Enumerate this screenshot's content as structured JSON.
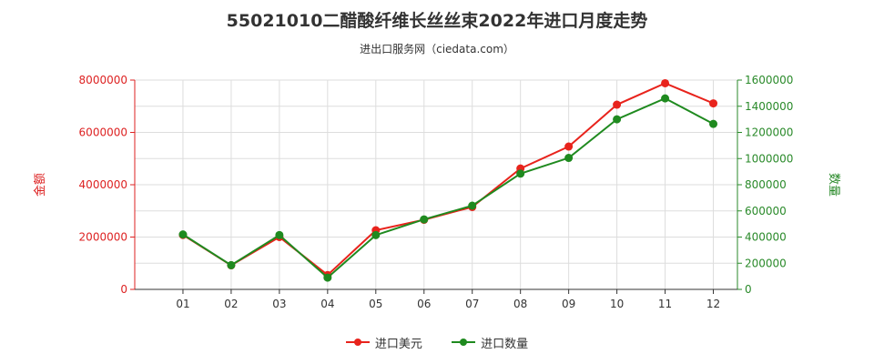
{
  "chart_data": {
    "type": "line",
    "title": "55021010二醋酸纤维长丝丝束2022年进口月度走势",
    "subtitle": "进出口服务网（ciedata.com）",
    "categories": [
      "01",
      "02",
      "03",
      "04",
      "05",
      "06",
      "07",
      "08",
      "09",
      "10",
      "11",
      "12"
    ],
    "y_left": {
      "label": "金额",
      "ylim": [
        0,
        8000000
      ],
      "ticks": [
        0,
        2000000,
        4000000,
        6000000,
        8000000
      ],
      "color": "#dd2222"
    },
    "y_right": {
      "label": "数量",
      "ylim": [
        0,
        1600000
      ],
      "ticks": [
        0,
        200000,
        400000,
        600000,
        800000,
        1000000,
        1200000,
        1400000,
        1600000
      ],
      "color": "#2a8a2a"
    },
    "series": [
      {
        "name": "进口美元",
        "axis": "left",
        "color": "#e8231c",
        "values": [
          2080000,
          920000,
          2000000,
          550000,
          2260000,
          2660000,
          3150000,
          4620000,
          5460000,
          7060000,
          7880000,
          7110000
        ]
      },
      {
        "name": "进口数量",
        "axis": "right",
        "color": "#1f8a1f",
        "values": [
          420000,
          185000,
          415000,
          90000,
          415000,
          535000,
          640000,
          885000,
          1005000,
          1300000,
          1460000,
          1265000
        ]
      }
    ],
    "grid": true,
    "legend_position": "bottom"
  }
}
